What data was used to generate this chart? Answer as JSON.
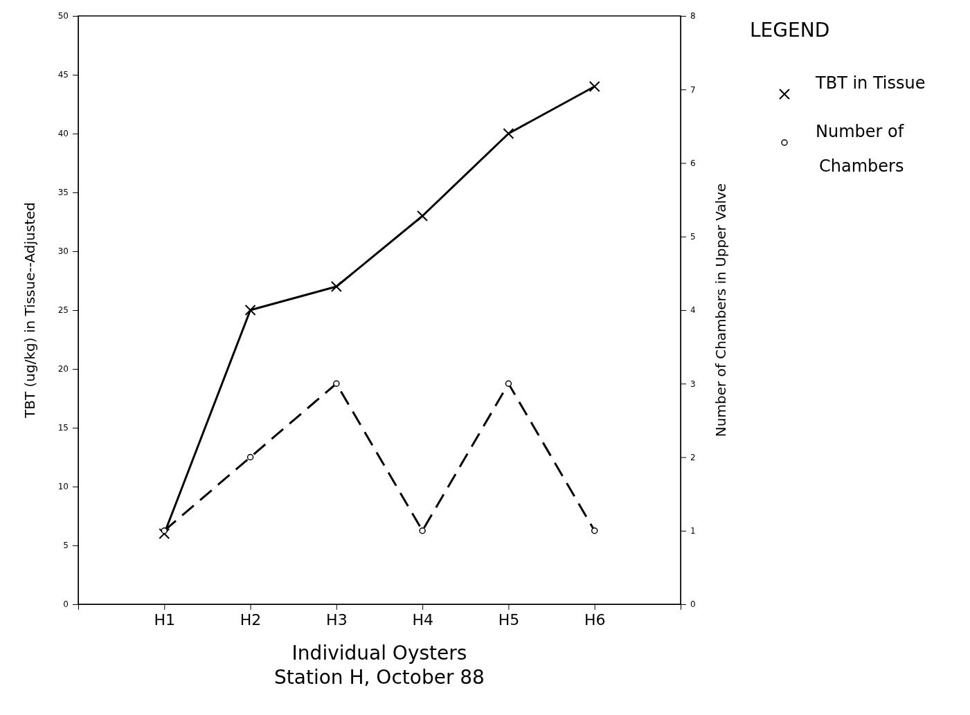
{
  "chart_data": {
    "type": "line",
    "categories": [
      "H1",
      "H2",
      "H3",
      "H4",
      "H5",
      "H6"
    ],
    "series": [
      {
        "name": "TBT in Tissue",
        "color": "#000000",
        "values": [
          6,
          25,
          27,
          33,
          40,
          44
        ],
        "marker": "cross",
        "line_style": "solid"
      },
      {
        "name": "Number of Chambers",
        "color": "#000000",
        "values": [
          1,
          2,
          3,
          1,
          3,
          1
        ],
        "axis": "y2",
        "marker": "circle",
        "line_style": "dashed"
      }
    ],
    "ylim": [
      0,
      50
    ],
    "yticks": [
      0,
      5,
      10,
      15,
      20,
      25,
      30,
      35,
      40,
      45,
      50
    ],
    "y2lim": [
      0,
      8
    ],
    "y2ticks": [
      0,
      1,
      2,
      3,
      4,
      5,
      6,
      7,
      8
    ],
    "xlabel": "Individual Oysters",
    "ylabel": "TBT (ug/kg) in Tissue--Adjusted",
    "y2label": "Number of Chambers in Upper Valve",
    "legend_title": "LEGEND",
    "legend": "right",
    "grid": false,
    "annotations": [
      "Station H, October 88"
    ]
  }
}
